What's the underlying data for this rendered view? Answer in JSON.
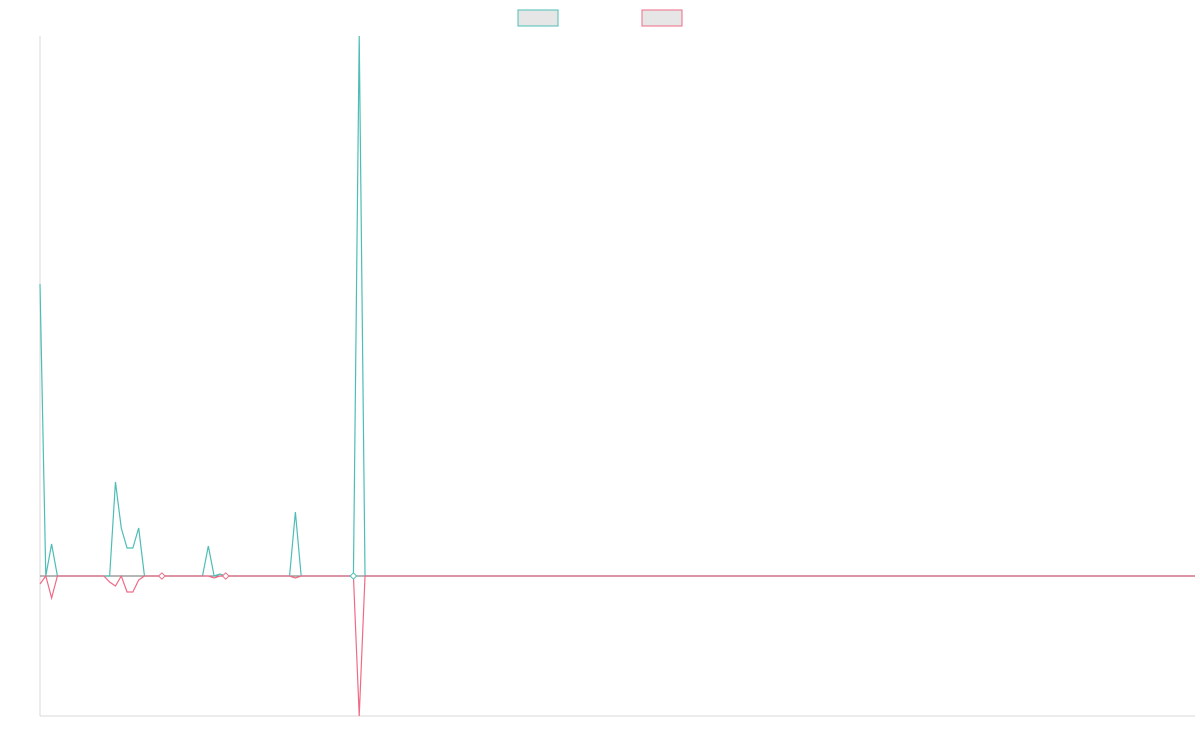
{
  "chart_data": {
    "type": "line",
    "title": "",
    "xlabel": "",
    "ylabel": "",
    "grid": false,
    "legend": {
      "placement": "top-center",
      "entries": [
        {
          "name": "",
          "color": "#4dbdb5"
        },
        {
          "name": "",
          "color": "#f06a86"
        }
      ]
    },
    "x": [
      0,
      1,
      2,
      3,
      4,
      5,
      6,
      7,
      8,
      9,
      10,
      11,
      12,
      13,
      14,
      15,
      16,
      17,
      18,
      19,
      20,
      21,
      22,
      23,
      24,
      25,
      26,
      27,
      28,
      29,
      30,
      31,
      32,
      33,
      34,
      35,
      36,
      37,
      38,
      39,
      40,
      41,
      42,
      43,
      44,
      45,
      46,
      47,
      48,
      49,
      50,
      51,
      52,
      53,
      54,
      55,
      56,
      57,
      58,
      59,
      60,
      61,
      62,
      63,
      64,
      65,
      66,
      67,
      68,
      69,
      70,
      71,
      72,
      73,
      74,
      75,
      76,
      77,
      78,
      79,
      80,
      81,
      82,
      83,
      84,
      85,
      86,
      87,
      88,
      89,
      90,
      91,
      92,
      93,
      94,
      95,
      96,
      97,
      98,
      99,
      100,
      101,
      102,
      103,
      104,
      105,
      106,
      107,
      108,
      109,
      110,
      111,
      112,
      113,
      114,
      115,
      116,
      117,
      118,
      119,
      120,
      121,
      122,
      123,
      124,
      125,
      126,
      127,
      128,
      129,
      130,
      131,
      132,
      133,
      134,
      135,
      136,
      137,
      138,
      139,
      140,
      141,
      142,
      143,
      144,
      145,
      146,
      147,
      148,
      149,
      150,
      151,
      152,
      153,
      154,
      155,
      156,
      157,
      158,
      159,
      160,
      161,
      162,
      163,
      164,
      165,
      166,
      167,
      168,
      169,
      170,
      171,
      172,
      173,
      174,
      175,
      176,
      177,
      178,
      179,
      180,
      181,
      182,
      183,
      184,
      185,
      186,
      187,
      188,
      189,
      190,
      191,
      192,
      193,
      194,
      195,
      196,
      197,
      198,
      199
    ],
    "ylim": [
      -140,
      540
    ],
    "series": [
      {
        "name": "",
        "color": "#4dbdb5",
        "values": [
          292,
          0,
          32,
          0,
          0,
          0,
          0,
          0,
          0,
          0,
          0,
          0,
          0,
          94,
          48,
          28,
          28,
          48,
          0,
          0,
          0,
          0,
          0,
          0,
          0,
          0,
          0,
          0,
          0,
          30,
          0,
          2,
          0,
          0,
          0,
          0,
          0,
          0,
          0,
          0,
          0,
          0,
          0,
          0,
          64,
          0,
          0,
          0,
          0,
          0,
          0,
          0,
          0,
          0,
          0,
          540,
          0,
          0,
          0,
          0,
          0,
          0,
          0,
          0,
          0,
          0,
          0,
          0,
          0,
          0,
          0,
          0,
          0,
          0,
          0,
          0,
          0,
          0,
          0,
          0,
          0,
          0,
          0,
          0,
          0,
          0,
          0,
          0,
          0,
          0,
          0,
          0,
          0,
          0,
          0,
          0,
          0,
          0,
          0,
          0,
          0,
          0,
          0,
          0,
          0,
          0,
          0,
          0,
          0,
          0,
          0,
          0,
          0,
          0,
          0,
          0,
          0,
          0,
          0,
          0,
          0,
          0,
          0,
          0,
          0,
          0,
          0,
          0,
          0,
          0,
          0,
          0,
          0,
          0,
          0,
          0,
          0,
          0,
          0,
          0,
          0,
          0,
          0,
          0,
          0,
          0,
          0,
          0,
          0,
          0,
          0,
          0,
          0,
          0,
          0,
          0,
          0,
          0,
          0,
          0,
          0,
          0,
          0,
          0,
          0,
          0,
          0,
          0,
          0,
          0,
          0,
          0,
          0,
          0,
          0,
          0,
          0,
          0,
          0,
          0,
          0,
          0,
          0,
          0,
          0,
          0,
          0,
          0,
          0,
          0,
          0,
          0,
          0,
          0,
          0,
          0,
          0,
          0,
          0,
          0
        ]
      },
      {
        "name": "",
        "color": "#f06a86",
        "values": [
          -8,
          0,
          -22,
          0,
          0,
          0,
          0,
          0,
          0,
          0,
          0,
          0,
          -6,
          -10,
          0,
          -16,
          -16,
          -4,
          0,
          0,
          0,
          0,
          0,
          0,
          0,
          0,
          0,
          0,
          0,
          0,
          -2,
          0,
          0,
          0,
          0,
          0,
          0,
          0,
          0,
          0,
          0,
          0,
          0,
          0,
          -2,
          0,
          0,
          0,
          0,
          0,
          0,
          0,
          0,
          0,
          0,
          -140,
          0,
          0,
          0,
          0,
          0,
          0,
          0,
          0,
          0,
          0,
          0,
          0,
          0,
          0,
          0,
          0,
          0,
          0,
          0,
          0,
          0,
          0,
          0,
          0,
          0,
          0,
          0,
          0,
          0,
          0,
          0,
          0,
          0,
          0,
          0,
          0,
          0,
          0,
          0,
          0,
          0,
          0,
          0,
          0,
          0,
          0,
          0,
          0,
          0,
          0,
          0,
          0,
          0,
          0,
          0,
          0,
          0,
          0,
          0,
          0,
          0,
          0,
          0,
          0,
          0,
          0,
          0,
          0,
          0,
          0,
          0,
          0,
          0,
          0,
          0,
          0,
          0,
          0,
          0,
          0,
          0,
          0,
          0,
          0,
          0,
          0,
          0,
          0,
          0,
          0,
          0,
          0,
          0,
          0,
          0,
          0,
          0,
          0,
          0,
          0,
          0,
          0,
          0,
          0,
          0,
          0,
          0,
          0,
          0,
          0,
          0,
          0,
          0,
          0,
          0,
          0,
          0,
          0,
          0,
          0,
          0,
          0,
          0,
          0,
          0,
          0,
          0,
          0,
          0,
          0,
          0,
          0,
          0,
          0,
          0,
          0,
          0,
          0,
          0,
          0,
          0,
          0,
          0,
          0
        ]
      }
    ],
    "markers": [
      {
        "series": 1,
        "x": 21,
        "value": 0
      },
      {
        "series": 1,
        "x": 32,
        "value": 0
      },
      {
        "series": 0,
        "x": 54,
        "value": 0
      }
    ]
  }
}
